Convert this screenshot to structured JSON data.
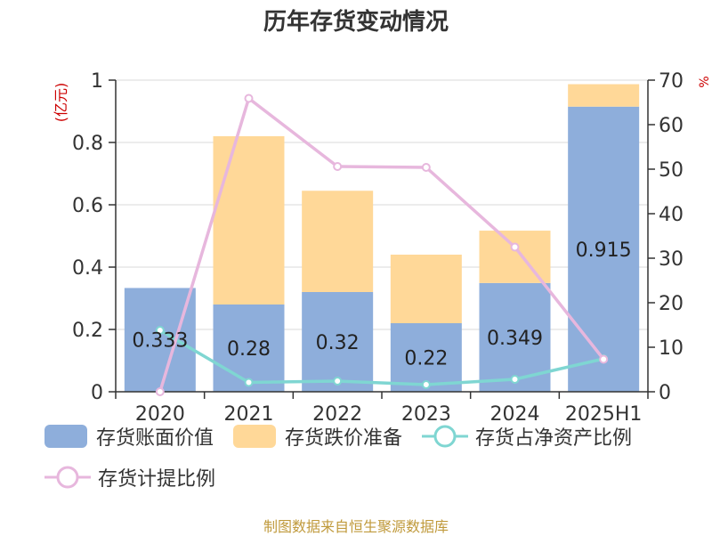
{
  "title": "历年存货变动情况",
  "source": "制图数据来自恒生聚源数据库",
  "colors": {
    "book_value": "#8eaedb",
    "write_down": "#ffd898",
    "net_assets_ratio": "#7fd6d2",
    "provision_ratio": "#e7b7dd",
    "axis_unit_color": "#cc0000"
  },
  "chart_data": {
    "type": "bar",
    "categories": [
      "2020",
      "2021",
      "2022",
      "2023",
      "2024",
      "2025H1"
    ],
    "left_axis": {
      "unit": "(亿元)",
      "ylim": [
        0,
        1
      ],
      "ticks": [
        "0",
        "0.2",
        "0.4",
        "0.6",
        "0.8",
        "1"
      ]
    },
    "right_axis": {
      "unit": "%",
      "ylim": [
        0,
        70
      ],
      "ticks": [
        "0",
        "10",
        "20",
        "30",
        "40",
        "50",
        "60",
        "70"
      ]
    },
    "series": [
      {
        "name": "存货账面价值",
        "kind": "bar",
        "axis": "left",
        "values": [
          0.333,
          0.28,
          0.32,
          0.22,
          0.349,
          0.915
        ],
        "labels": [
          "0.333",
          "0.28",
          "0.32",
          "0.22",
          "0.349",
          "0.915"
        ]
      },
      {
        "name": "存货跌价准备",
        "kind": "bar",
        "axis": "left",
        "values": [
          0.0,
          0.54,
          0.325,
          0.22,
          0.168,
          0.072
        ]
      },
      {
        "name": "存货占净资产比例",
        "kind": "line",
        "axis": "right",
        "values": [
          13.8,
          2.1,
          2.4,
          1.6,
          2.8,
          7.4
        ]
      },
      {
        "name": "存货计提比例",
        "kind": "line",
        "axis": "right",
        "values": [
          0.0,
          65.9,
          50.6,
          50.4,
          32.5,
          7.3
        ]
      }
    ],
    "grid": true,
    "legend_position": "bottom"
  }
}
